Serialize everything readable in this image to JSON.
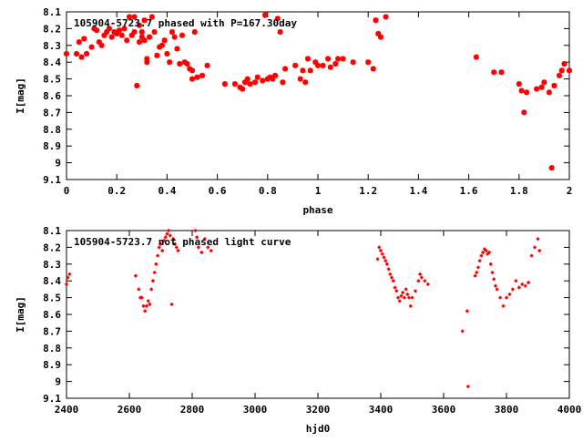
{
  "chart_data": [
    {
      "type": "scatter",
      "title": "105904-5723.7 phased with P=167.30day",
      "xlabel": "phase",
      "ylabel": "I[mag]",
      "xlim": [
        0,
        2
      ],
      "ylim": [
        9.1,
        8.1
      ],
      "x_ticks": [
        "0",
        "0.2",
        "0.4",
        "0.6",
        "0.8",
        "1",
        "1.2",
        "1.4",
        "1.6",
        "1.8",
        "2"
      ],
      "y_ticks": [
        "8.1",
        "8.2",
        "8.3",
        "8.4",
        "8.5",
        "8.6",
        "8.7",
        "8.8",
        "8.9",
        "9",
        "9.1"
      ],
      "grid": false,
      "marker": "star",
      "color": "#ff0000",
      "x": [
        0.0,
        0.04,
        0.05,
        0.06,
        0.07,
        0.08,
        0.1,
        0.11,
        0.12,
        0.13,
        0.14,
        0.15,
        0.16,
        0.17,
        0.18,
        0.19,
        0.2,
        0.21,
        0.22,
        0.23,
        0.24,
        0.25,
        0.26,
        0.27,
        0.27,
        0.28,
        0.29,
        0.29,
        0.3,
        0.3,
        0.31,
        0.31,
        0.32,
        0.32,
        0.33,
        0.34,
        0.35,
        0.36,
        0.37,
        0.38,
        0.39,
        0.4,
        0.41,
        0.42,
        0.43,
        0.44,
        0.45,
        0.46,
        0.47,
        0.48,
        0.49,
        0.5,
        0.5,
        0.51,
        0.52,
        0.54,
        0.56,
        0.63,
        0.67,
        0.69,
        0.7,
        0.71,
        0.72,
        0.73,
        0.75,
        0.76,
        0.78,
        0.79,
        0.8,
        0.81,
        0.82,
        0.83,
        0.84,
        0.85,
        0.86,
        0.87,
        0.91,
        0.93,
        0.94,
        0.95,
        0.96,
        0.97,
        0.99,
        1.0,
        1.02,
        1.04,
        1.05,
        1.07,
        1.08,
        1.1,
        1.14,
        1.2,
        1.22,
        1.23,
        1.24,
        1.25,
        1.27,
        1.63,
        1.7,
        1.73,
        1.8,
        1.81,
        1.82,
        1.83,
        1.87,
        1.89,
        1.9,
        1.92,
        1.93,
        1.94,
        1.96,
        1.97,
        1.98,
        2.0
      ],
      "y": [
        8.35,
        8.35,
        8.28,
        8.37,
        8.26,
        8.35,
        8.31,
        8.2,
        8.21,
        8.28,
        8.3,
        8.24,
        8.22,
        8.2,
        8.25,
        8.22,
        8.23,
        8.21,
        8.24,
        8.2,
        8.27,
        8.13,
        8.24,
        8.13,
        8.22,
        8.54,
        8.28,
        8.18,
        8.25,
        8.22,
        8.15,
        8.27,
        8.38,
        8.4,
        8.25,
        8.13,
        8.22,
        8.36,
        8.31,
        8.3,
        8.27,
        8.35,
        8.4,
        8.22,
        8.25,
        8.32,
        8.41,
        8.24,
        8.4,
        8.41,
        8.44,
        8.5,
        8.45,
        8.22,
        8.49,
        8.48,
        8.42,
        8.53,
        8.53,
        8.55,
        8.56,
        8.52,
        8.5,
        8.53,
        8.52,
        8.49,
        8.51,
        8.12,
        8.5,
        8.49,
        8.5,
        8.48,
        8.14,
        8.22,
        8.52,
        8.44,
        8.42,
        8.5,
        8.45,
        8.52,
        8.38,
        8.45,
        8.4,
        8.42,
        8.42,
        8.38,
        8.43,
        8.41,
        8.38,
        8.38,
        8.4,
        8.4,
        8.44,
        8.15,
        8.23,
        8.25,
        8.13,
        8.37,
        8.46,
        8.46,
        8.53,
        8.57,
        8.7,
        8.58,
        8.56,
        8.55,
        8.52,
        8.58,
        9.03,
        8.54,
        8.48,
        8.45,
        8.41,
        8.45
      ]
    },
    {
      "type": "scatter",
      "title": "105904-5723.7 not phased light curve",
      "xlabel": "hjd0",
      "ylabel": "I[mag]",
      "xlim": [
        2400,
        4000
      ],
      "ylim": [
        9.1,
        8.1
      ],
      "x_ticks": [
        "2400",
        "2600",
        "2800",
        "3000",
        "3200",
        "3400",
        "3600",
        "3800",
        "4000"
      ],
      "y_ticks": [
        "8.1",
        "8.2",
        "8.3",
        "8.4",
        "8.5",
        "8.6",
        "8.7",
        "8.8",
        "8.9",
        "9",
        "9.1"
      ],
      "grid": false,
      "marker": "plus",
      "color": "#ff0000",
      "x": [
        2400,
        2404,
        2410,
        2620,
        2630,
        2635,
        2640,
        2645,
        2650,
        2655,
        2660,
        2665,
        2670,
        2675,
        2680,
        2685,
        2690,
        2695,
        2700,
        2705,
        2710,
        2715,
        2720,
        2725,
        2730,
        2735,
        2740,
        2745,
        2750,
        2755,
        2810,
        2815,
        2820,
        2830,
        2840,
        2850,
        2860,
        3390,
        3395,
        3400,
        3405,
        3410,
        3415,
        3420,
        3425,
        3430,
        3435,
        3440,
        3445,
        3450,
        3455,
        3460,
        3465,
        3470,
        3475,
        3480,
        3485,
        3490,
        3495,
        3500,
        3510,
        3520,
        3525,
        3530,
        3540,
        3550,
        3660,
        3675,
        3678,
        3700,
        3705,
        3710,
        3715,
        3720,
        3725,
        3730,
        3735,
        3740,
        3745,
        3750,
        3755,
        3760,
        3765,
        3770,
        3780,
        3790,
        3800,
        3810,
        3820,
        3830,
        3840,
        3850,
        3860,
        3870,
        3880,
        3890,
        3900,
        3905
      ],
      "y": [
        8.42,
        8.38,
        8.36,
        8.37,
        8.45,
        8.5,
        8.5,
        8.55,
        8.58,
        8.55,
        8.52,
        8.54,
        8.45,
        8.4,
        8.35,
        8.3,
        8.25,
        8.2,
        8.18,
        8.22,
        8.16,
        8.14,
        8.12,
        8.1,
        8.13,
        8.54,
        8.15,
        8.18,
        8.2,
        8.22,
        8.1,
        8.14,
        8.2,
        8.23,
        8.15,
        8.2,
        8.22,
        8.27,
        8.2,
        8.22,
        8.24,
        8.26,
        8.28,
        8.3,
        8.33,
        8.36,
        8.38,
        8.4,
        8.44,
        8.46,
        8.5,
        8.52,
        8.49,
        8.47,
        8.5,
        8.45,
        8.48,
        8.5,
        8.55,
        8.5,
        8.46,
        8.4,
        8.36,
        8.38,
        8.4,
        8.42,
        8.7,
        8.58,
        9.03,
        8.37,
        8.35,
        8.32,
        8.28,
        8.25,
        8.23,
        8.21,
        8.22,
        8.24,
        8.23,
        8.3,
        8.35,
        8.39,
        8.43,
        8.45,
        8.5,
        8.55,
        8.5,
        8.48,
        8.45,
        8.4,
        8.44,
        8.42,
        8.43,
        8.41,
        8.25,
        8.2,
        8.15,
        8.22
      ]
    }
  ]
}
